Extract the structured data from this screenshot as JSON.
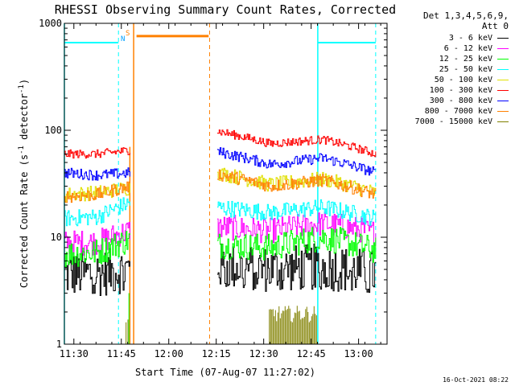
{
  "chart_data": {
    "type": "line",
    "title": "RHESSI Observing Summary Count Rates, Corrected",
    "xlabel": "Start Time (07-Aug-07 11:27:02)",
    "ylabel": "Corrected Count Rate (s",
    "ylabel_sup1": "-1",
    "ylabel_mid": " detector",
    "ylabel_sup2": "-1",
    "ylabel_end": ")",
    "yscale": "log",
    "ylim": [
      1,
      1000
    ],
    "xlim_minutes": [
      11.45,
      13.15
    ],
    "x_ticks": [
      "11:30",
      "11:45",
      "12:00",
      "12:15",
      "12:30",
      "12:45",
      "13:00"
    ],
    "x_tick_values": [
      11.5,
      11.75,
      12.0,
      12.25,
      12.5,
      12.75,
      13.0
    ],
    "y_ticks": [
      "1",
      "10",
      "100",
      "1000"
    ],
    "y_tick_values": [
      1,
      10,
      100,
      1000
    ],
    "legend_header": [
      "Det 1,3,4,5,6,9,",
      "Att 0"
    ],
    "legend_position": "right",
    "series": [
      {
        "name": "3 - 6 keV",
        "color": "#000000",
        "pre": [
          4.5,
          4.6,
          5.0
        ],
        "post": [
          5.4,
          5.0,
          5.3,
          4.6
        ],
        "noise": 0.22
      },
      {
        "name": "6 - 12 keV",
        "color": "#ff00ff",
        "pre": [
          8.8,
          9.0,
          11.5
        ],
        "post": [
          12.5,
          11.5,
          13.5,
          11.0
        ],
        "noise": 0.12
      },
      {
        "name": "12 - 25 keV",
        "color": "#00ff00",
        "pre": [
          7.0,
          7.2,
          9.5
        ],
        "post": [
          8.5,
          8.0,
          10.0,
          7.5
        ],
        "noise": 0.13
      },
      {
        "name": "25 - 50 keV",
        "color": "#00ffff",
        "pre": [
          15.0,
          15.5,
          21.0
        ],
        "post": [
          19.0,
          17.0,
          19.0,
          15.0
        ],
        "noise": 0.08
      },
      {
        "name": "50 - 100 keV",
        "color": "#e0e000",
        "pre": [
          25.0,
          26.0,
          29.0
        ],
        "post": [
          40.0,
          31.0,
          35.0,
          26.0
        ],
        "noise": 0.07
      },
      {
        "name": "100 - 300 keV",
        "color": "#ff0000",
        "pre": [
          60.0,
          60.0,
          65.0
        ],
        "post": [
          98.0,
          75.0,
          82.0,
          60.0
        ],
        "noise": 0.04
      },
      {
        "name": "300 - 800 keV",
        "color": "#0000ff",
        "pre": [
          40.0,
          38.0,
          40.0
        ],
        "post": [
          63.0,
          48.0,
          55.0,
          40.0
        ],
        "noise": 0.05
      },
      {
        "name": "800 - 7000 keV",
        "color": "#ff8000",
        "pre": [
          24.0,
          25.0,
          30.0
        ],
        "post": [
          39.0,
          30.0,
          34.0,
          25.0
        ],
        "noise": 0.06
      },
      {
        "name": "7000 - 15000 keV",
        "color": "#808000",
        "pre": [],
        "post": [],
        "noise": 0
      }
    ],
    "markers": {
      "saa_flag": "S",
      "night_flag": "N",
      "saa_level": 760,
      "night_level": 660
    },
    "footer_timestamp": "16-Oct-2021 08:22"
  }
}
